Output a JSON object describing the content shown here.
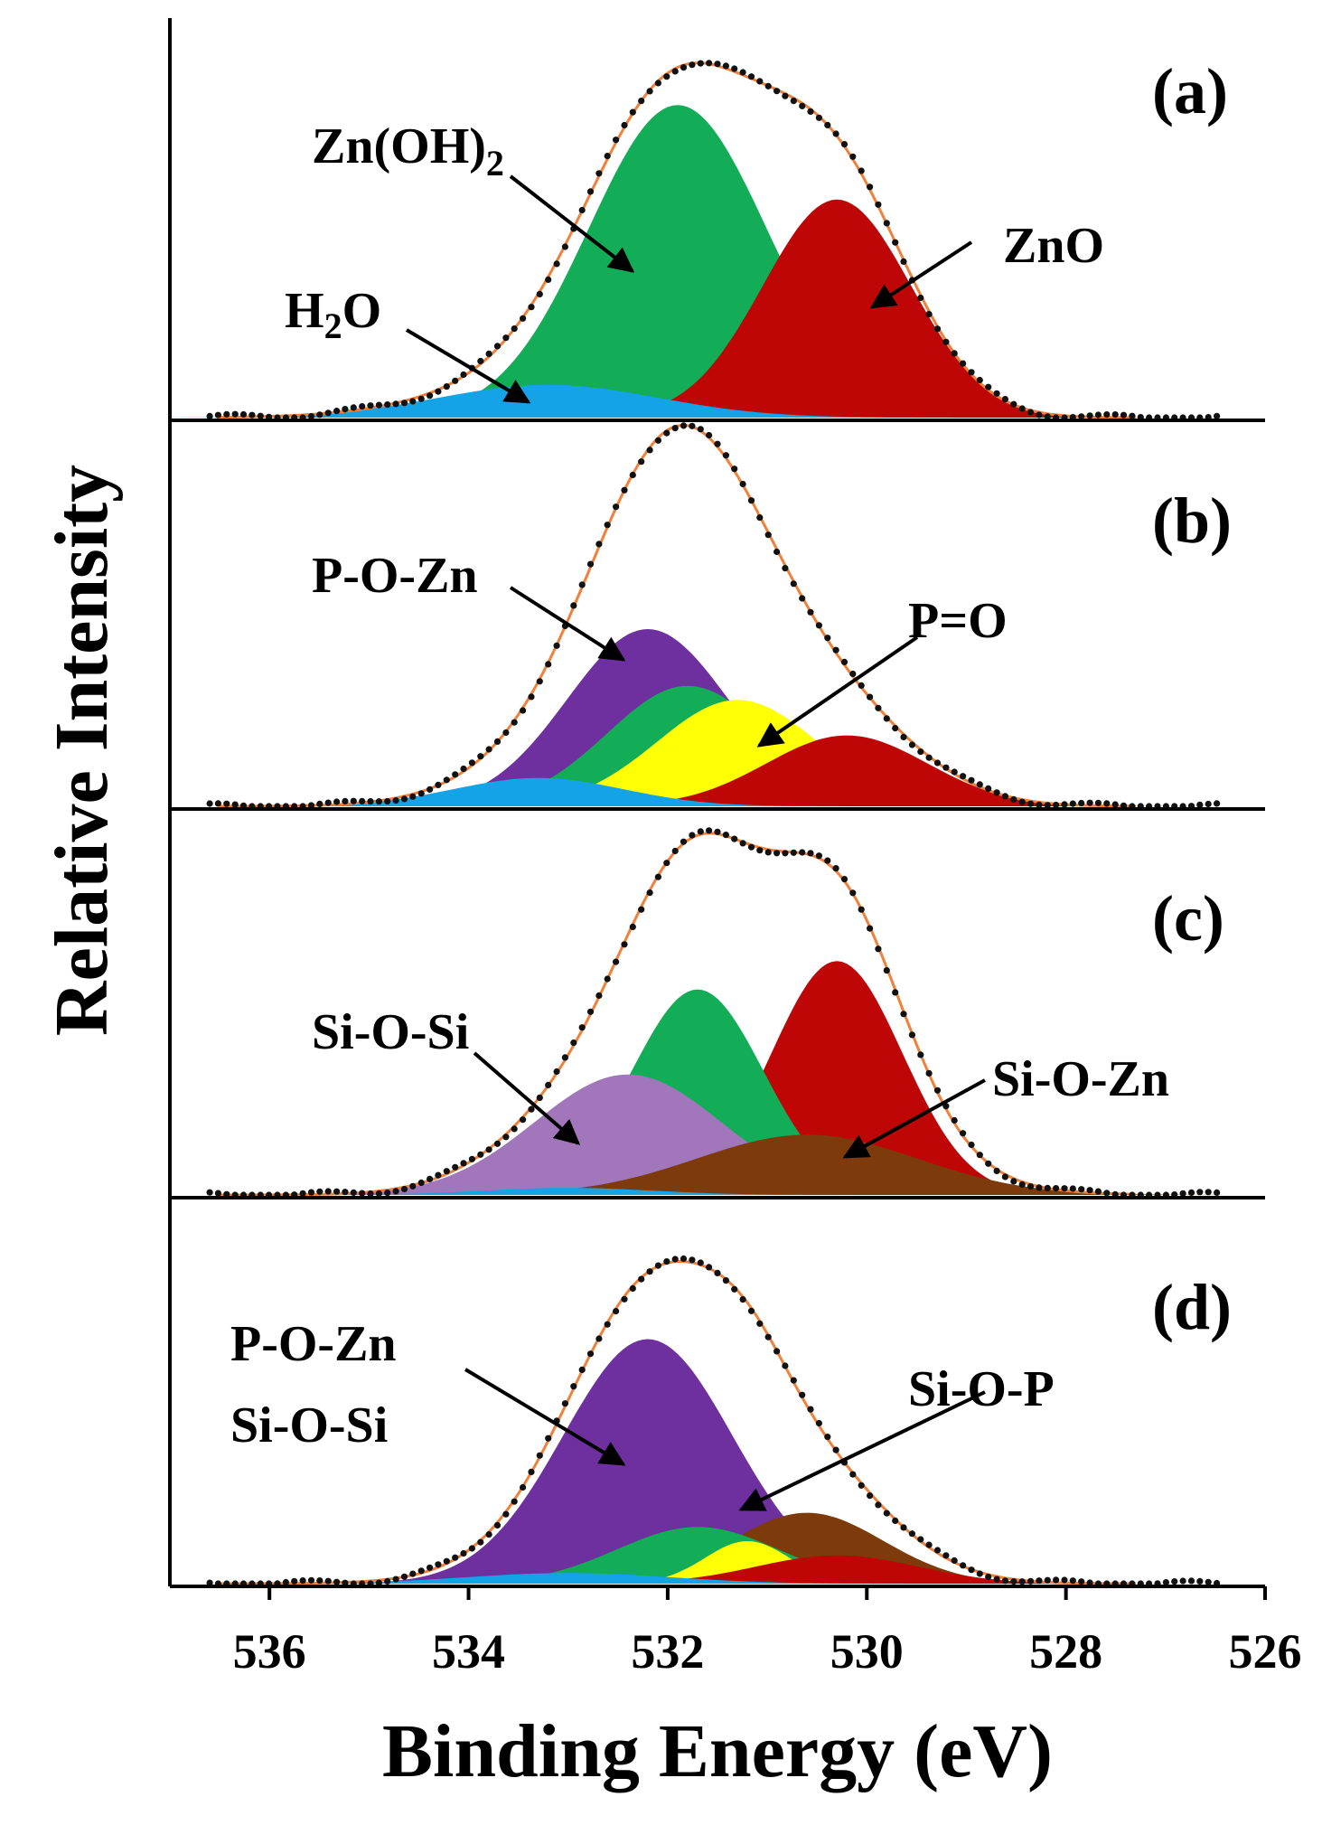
{
  "chart_data": {
    "type": "area",
    "xlabel": "Binding Energy (eV)",
    "ylabel": "Relative Intensity",
    "xlim": [
      537,
      526
    ],
    "xticks": [
      536,
      534,
      532,
      530,
      528,
      526
    ],
    "xtick_labels": [
      "536",
      "534",
      "532",
      "530",
      "528",
      "526"
    ],
    "colors": {
      "H2O": "#14a3e6",
      "Zn(OH)2": "#13ad57",
      "ZnO": "#bf0606",
      "P-O-Zn": "#6e2f9f",
      "P=O": "#ffff05",
      "Si-O-Si": "#a176ba",
      "Si-O-Zn": "#7d3b0c",
      "Si-O-P": "#ffff05",
      "fit_line": "#f0803a",
      "data_points": "#111111"
    },
    "panels": [
      {
        "label": "(a)",
        "components": [
          {
            "name": "H2O",
            "center": 533.2,
            "fwhm": 2.6,
            "height": 0.09
          },
          {
            "name": "Zn(OH)2",
            "center": 531.9,
            "fwhm": 2.1,
            "height": 0.86
          },
          {
            "name": "ZnO",
            "center": 530.3,
            "fwhm": 1.75,
            "height": 0.6
          }
        ],
        "annotations": [
          {
            "text": "Zn(OH)",
            "sub": "2",
            "target": "Zn(OH)2"
          },
          {
            "text": "H",
            "sub": "2",
            "after": "O",
            "target": "H2O"
          },
          {
            "text": "ZnO",
            "target": "ZnO"
          }
        ]
      },
      {
        "label": "(b)",
        "components": [
          {
            "name": "H2O",
            "center": 533.3,
            "fwhm": 2.0,
            "height": 0.08
          },
          {
            "name": "P-O-Zn",
            "center": 532.2,
            "fwhm": 1.9,
            "height": 0.5
          },
          {
            "name": "Zn(OH)2",
            "center": 531.8,
            "fwhm": 1.9,
            "height": 0.34
          },
          {
            "name": "P=O",
            "center": 531.3,
            "fwhm": 1.9,
            "height": 0.3
          },
          {
            "name": "ZnO",
            "center": 530.2,
            "fwhm": 1.9,
            "height": 0.2
          }
        ],
        "annotations": [
          {
            "text": "P-O-Zn",
            "target": "P-O-Zn"
          },
          {
            "text": "P=O",
            "target": "P=O"
          }
        ]
      },
      {
        "label": "(c)",
        "components": [
          {
            "name": "H2O",
            "center": 533.0,
            "fwhm": 2.0,
            "height": 0.02
          },
          {
            "name": "Si-O-Si",
            "center": 532.4,
            "fwhm": 2.2,
            "height": 0.34
          },
          {
            "name": "Zn(OH)2",
            "center": 531.7,
            "fwhm": 1.55,
            "height": 0.58
          },
          {
            "name": "Si-O-Zn",
            "center": 530.6,
            "fwhm": 2.6,
            "height": 0.17
          },
          {
            "name": "ZnO",
            "center": 530.3,
            "fwhm": 1.55,
            "height": 0.66
          }
        ],
        "annotations": [
          {
            "text": "Si-O-Si",
            "target": "Si-O-Si"
          },
          {
            "text": "Si-O-Zn",
            "target": "Si-O-Zn"
          }
        ]
      },
      {
        "label": "(d)",
        "components": [
          {
            "name": "H2O",
            "center": 533.0,
            "fwhm": 2.4,
            "height": 0.03
          },
          {
            "name": "Zn(OH)2",
            "center": 531.7,
            "fwhm": 1.9,
            "height": 0.16
          },
          {
            "name": "ZnO",
            "center": 530.3,
            "fwhm": 1.9,
            "height": 0.08
          },
          {
            "name": "Si-O-P",
            "center": 531.2,
            "fwhm": 1.0,
            "height": 0.12
          },
          {
            "name": "Si-O-Zn",
            "center": 530.6,
            "fwhm": 1.8,
            "height": 0.2
          },
          {
            "name": "P-O-Zn",
            "center": 532.2,
            "fwhm": 2.0,
            "height": 0.69
          }
        ],
        "annotations": [
          {
            "text": "P-O-Zn",
            "target": "P-O-Zn"
          },
          {
            "text": "Si-O-Si",
            "target": "P-O-Zn"
          },
          {
            "text": "Si-O-P",
            "target": "Si-O-P"
          }
        ]
      }
    ]
  }
}
